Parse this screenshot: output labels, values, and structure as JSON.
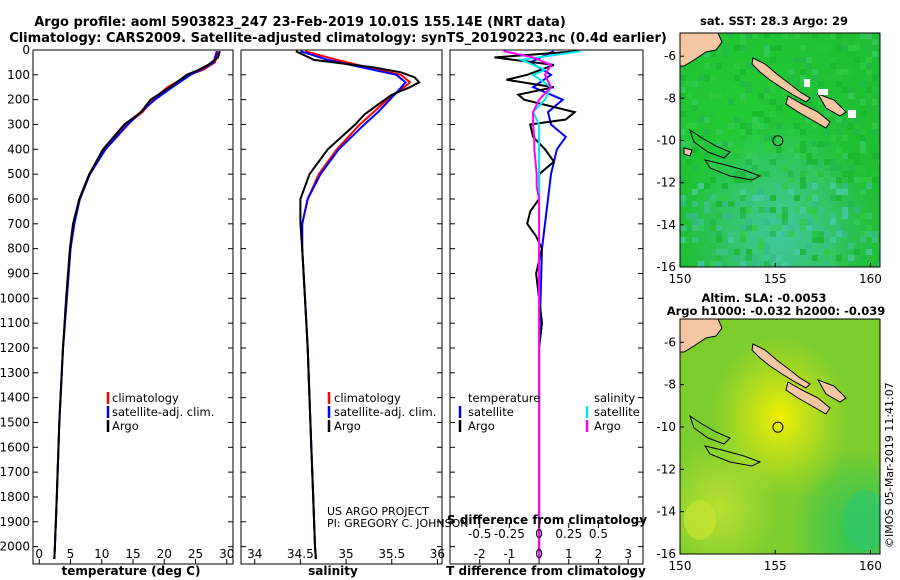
{
  "title_line1": "Argo profile: aoml 5903823_247 23-Feb-2019 10.01S 155.14E (NRT data)",
  "title_line2": "Climatology: CARS2009. Satellite-adjusted climatology: synTS_20190223.nc (0.4d earlier)",
  "credit": "US ARGO PROJECT\nPI: GREGORY C. JOHNSON",
  "watermark": "©IMOS 05-Mar-2019 11:41:07",
  "colors": {
    "climatology": "#ff0000",
    "satellite": "#0000ff",
    "argo": "#000000",
    "satellite_s": "#00e5ee",
    "argo_s": "#ff00ff"
  },
  "pressure_ticks": [
    "0",
    "100",
    "200",
    "300",
    "400",
    "500",
    "600",
    "700",
    "800",
    "900",
    "1000",
    "1100",
    "1200",
    "1300",
    "1400",
    "1500",
    "1600",
    "1700",
    "1800",
    "1900",
    "2000"
  ],
  "chart_data": [
    {
      "type": "line",
      "xlabel": "temperature (deg C)",
      "xlim": [
        -1,
        31
      ],
      "ylim": [
        2070,
        0
      ],
      "xticks": [
        "0",
        "5",
        "10",
        "15",
        "20",
        "25",
        "30"
      ],
      "legend": [
        "climatology",
        "satellite-adj. clim.",
        "Argo"
      ],
      "series": [
        {
          "name": "climatology",
          "p": [
            5,
            50,
            80,
            100,
            150,
            200,
            250,
            300,
            400,
            500,
            600,
            700,
            800,
            1000,
            1200,
            1500,
            1800,
            2000,
            2050
          ],
          "v": [
            28.7,
            28.1,
            26.2,
            24.0,
            20.5,
            18.2,
            16.5,
            14.0,
            10.3,
            8.0,
            6.4,
            5.6,
            5.0,
            4.4,
            3.8,
            3.2,
            2.8,
            2.5,
            2.4
          ]
        },
        {
          "name": "satellite-adj. clim.",
          "p": [
            5,
            50,
            80,
            100,
            150,
            200,
            250,
            300,
            400,
            500,
            600,
            700,
            800,
            1000,
            1200,
            1500,
            1800,
            2000,
            2050
          ],
          "v": [
            28.4,
            27.9,
            25.8,
            24.2,
            21.3,
            18.5,
            16.2,
            14.2,
            10.6,
            8.1,
            6.5,
            5.6,
            5.0,
            4.4,
            3.8,
            3.2,
            2.8,
            2.5,
            2.4
          ]
        },
        {
          "name": "Argo",
          "p": [
            5,
            30,
            60,
            80,
            100,
            150,
            200,
            250,
            300,
            400,
            500,
            600,
            700,
            800,
            1000,
            1200,
            1500,
            1800,
            2000,
            2050
          ],
          "v": [
            28.9,
            28.6,
            27.0,
            25.5,
            23.6,
            20.9,
            17.8,
            16.3,
            13.6,
            10.2,
            8.0,
            6.4,
            5.4,
            4.9,
            4.3,
            3.8,
            3.2,
            2.8,
            2.5,
            2.4
          ]
        }
      ]
    },
    {
      "type": "line",
      "xlabel": "salinity",
      "xlim": [
        33.85,
        36.05
      ],
      "ylim": [
        2070,
        0
      ],
      "xticks": [
        "34",
        "34.5",
        "35",
        "35.5",
        "36"
      ],
      "legend": [
        "climatology",
        "satellite-adj. clim.",
        "Argo"
      ],
      "series": [
        {
          "name": "climatology",
          "p": [
            5,
            40,
            80,
            100,
            130,
            160,
            200,
            250,
            300,
            400,
            500,
            600,
            700,
            800,
            1000,
            1200,
            1500,
            1800,
            2000,
            2050
          ],
          "v": [
            34.55,
            34.9,
            35.35,
            35.6,
            35.7,
            35.6,
            35.45,
            35.3,
            35.15,
            34.9,
            34.7,
            34.58,
            34.52,
            34.52,
            34.55,
            34.58,
            34.61,
            34.64,
            34.66,
            34.67
          ]
        },
        {
          "name": "satellite-adj. clim.",
          "p": [
            5,
            40,
            80,
            100,
            130,
            160,
            200,
            250,
            300,
            400,
            500,
            600,
            700,
            800,
            1000,
            1200,
            1500,
            1800,
            2000,
            2050
          ],
          "v": [
            34.5,
            34.8,
            35.3,
            35.55,
            35.65,
            35.58,
            35.48,
            35.35,
            35.2,
            34.92,
            34.72,
            34.58,
            34.52,
            34.52,
            34.55,
            34.58,
            34.61,
            34.64,
            34.66,
            34.67
          ]
        },
        {
          "name": "Argo",
          "p": [
            5,
            40,
            70,
            90,
            110,
            130,
            150,
            180,
            220,
            260,
            300,
            400,
            500,
            600,
            700,
            800,
            1000,
            1200,
            1500,
            1800,
            2000,
            2050
          ],
          "v": [
            34.45,
            34.65,
            35.3,
            35.6,
            35.75,
            35.8,
            35.7,
            35.5,
            35.35,
            35.2,
            35.1,
            34.8,
            34.6,
            34.5,
            34.5,
            34.52,
            34.55,
            34.58,
            34.61,
            34.64,
            34.66,
            34.67
          ]
        }
      ]
    },
    {
      "type": "line",
      "xlabel": "T difference from climatology",
      "xlabel_s": "S difference from climatology",
      "xlim": [
        -3,
        3.5
      ],
      "ylim": [
        2070,
        0
      ],
      "xticks": [
        "-2",
        "-1",
        "0",
        "1",
        "2",
        "3"
      ],
      "xticks_s": [
        "-0.5",
        "-0.25",
        "0",
        "0.25",
        "0.5"
      ],
      "legend_t": {
        "title": "temperature",
        "items": [
          "satellite",
          "Argo"
        ]
      },
      "legend_s": {
        "title": "salinity",
        "items": [
          "satellite",
          "Argo"
        ]
      },
      "series": [
        {
          "name": "T satellite",
          "p": [
            5,
            50,
            100,
            150,
            200,
            250,
            300,
            350,
            400,
            500,
            600,
            700,
            800,
            1000,
            1200,
            1500,
            1800,
            2000,
            2050
          ],
          "v": [
            0.5,
            -0.3,
            0.4,
            -0.2,
            0.8,
            0.3,
            0.4,
            0.9,
            0.6,
            0.4,
            0.3,
            0.2,
            0.1,
            0.05,
            0.0,
            0.0,
            0.0,
            0.0,
            0.0
          ]
        },
        {
          "name": "T Argo",
          "p": [
            5,
            30,
            60,
            100,
            120,
            150,
            180,
            200,
            250,
            280,
            300,
            350,
            400,
            450,
            500,
            600,
            650,
            700,
            750,
            800,
            900,
            1000,
            1100,
            1200,
            1400,
            1600,
            1800,
            2000,
            2050
          ],
          "v": [
            1.3,
            -1.5,
            0.5,
            -0.4,
            -1.1,
            0.5,
            -0.7,
            -0.5,
            1.2,
            0.9,
            -0.3,
            -0.2,
            0.2,
            0.5,
            0.0,
            0.0,
            -0.3,
            -0.4,
            -0.1,
            0.1,
            -0.1,
            0.0,
            0.1,
            0.0,
            0.0,
            0.0,
            0.0,
            0.0,
            0.0
          ]
        },
        {
          "name": "S satellite",
          "p": [
            5,
            40,
            80,
            100,
            150,
            200,
            250,
            300,
            400,
            500,
            600,
            800,
            1000,
            1500,
            2000,
            2050
          ],
          "v": [
            0.35,
            -0.15,
            0.05,
            -0.05,
            0.1,
            0.05,
            -0.05,
            0.0,
            0.0,
            0.0,
            0.0,
            0.0,
            0.0,
            0.0,
            0.0,
            0.0
          ]
        },
        {
          "name": "S Argo",
          "p": [
            5,
            30,
            60,
            100,
            150,
            200,
            250,
            300,
            350,
            400,
            450,
            500,
            550,
            600,
            700,
            800,
            1000,
            1500,
            2000,
            2050
          ],
          "v": [
            -0.3,
            -0.05,
            0.1,
            0.05,
            0.1,
            0.0,
            -0.05,
            -0.05,
            -0.04,
            -0.04,
            -0.03,
            -0.02,
            -0.02,
            0.0,
            0.0,
            0.0,
            0.0,
            0.0,
            0.0,
            0.0
          ]
        }
      ]
    },
    {
      "type": "heatmap",
      "title": "sat. SST: 28.3 Argo: 29",
      "xlim": [
        150,
        160.5
      ],
      "ylim": [
        -16,
        -4.9
      ],
      "xticks": [
        "150",
        "155",
        "160"
      ],
      "yticks": [
        "-6",
        "-8",
        "-10",
        "-12",
        "-14",
        "-16"
      ],
      "marker": {
        "lon": 155.14,
        "lat": -10.01
      }
    },
    {
      "type": "heatmap",
      "title_line1": "Altim. SLA: -0.0053",
      "title_line2": "Argo h1000: -0.032 h2000: -0.039",
      "xlim": [
        150,
        160.5
      ],
      "ylim": [
        -16,
        -4.9
      ],
      "xticks": [
        "150",
        "155",
        "160"
      ],
      "yticks": [
        "-6",
        "-8",
        "-10",
        "-12",
        "-14",
        "-16"
      ],
      "marker": {
        "lon": 155.14,
        "lat": -10.01
      }
    }
  ]
}
